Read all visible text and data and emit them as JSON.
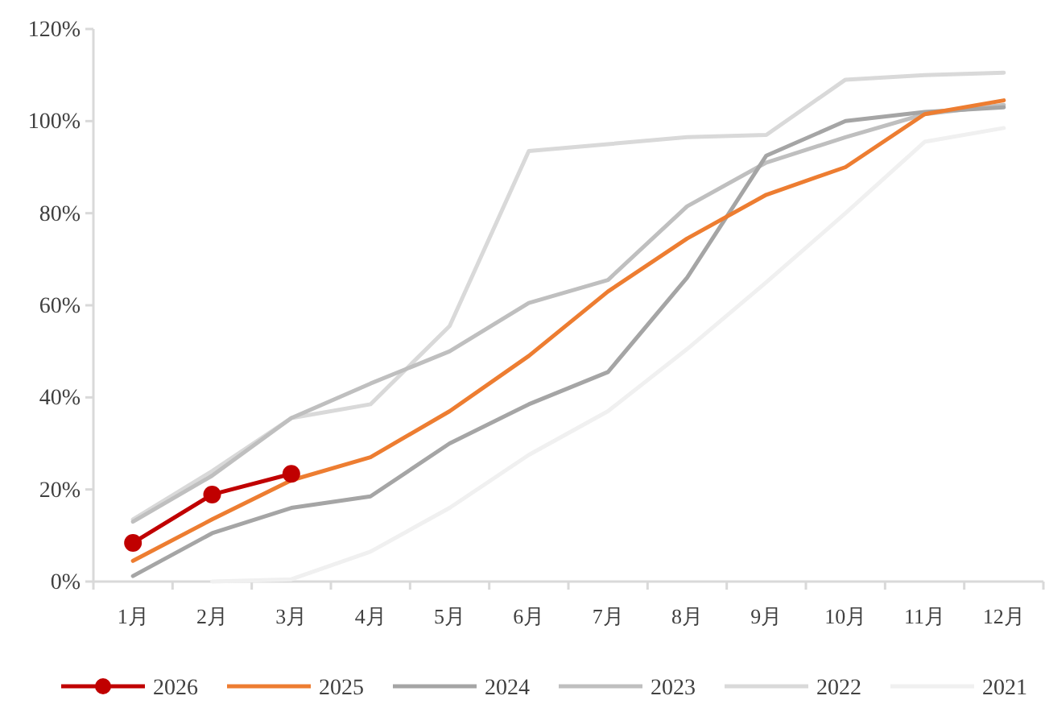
{
  "chart_data": {
    "type": "line",
    "categories": [
      "1月",
      "2月",
      "3月",
      "4月",
      "5月",
      "6月",
      "7月",
      "8月",
      "9月",
      "10月",
      "11月",
      "12月"
    ],
    "ylim": [
      0,
      120
    ],
    "yticks": [
      {
        "value": 0,
        "label": "0%"
      },
      {
        "value": 20,
        "label": "20%"
      },
      {
        "value": 40,
        "label": "40%"
      },
      {
        "value": 60,
        "label": "60%"
      },
      {
        "value": 80,
        "label": "80%"
      },
      {
        "value": 100,
        "label": "100%"
      },
      {
        "value": 120,
        "label": "120%"
      }
    ],
    "grid": false,
    "legend": "bottom",
    "series": [
      {
        "name": "2026",
        "color": "#c00000",
        "marker": "circle",
        "values": [
          8.4,
          18.9,
          23.4,
          null,
          null,
          null,
          null,
          null,
          null,
          null,
          null,
          null
        ]
      },
      {
        "name": "2025",
        "color": "#ed7d31",
        "values": [
          4.5,
          13.5,
          22,
          27,
          37,
          49,
          63,
          74.5,
          84,
          90,
          101.5,
          104.5
        ]
      },
      {
        "name": "2024",
        "color": "#a5a5a5",
        "values": [
          1.2,
          10.5,
          16,
          18.5,
          30,
          38.5,
          45.5,
          66,
          92.5,
          100,
          102,
          103
        ]
      },
      {
        "name": "2023",
        "color": "#bfbfbf",
        "values": [
          13,
          23,
          35.5,
          43,
          50,
          60.5,
          65.5,
          81.5,
          91,
          96.5,
          101.5,
          103.5
        ]
      },
      {
        "name": "2022",
        "color": "#d9d9d9",
        "values": [
          13.5,
          24,
          35.5,
          38.5,
          55.5,
          93.5,
          95,
          96.5,
          97,
          109,
          110,
          110.5
        ]
      },
      {
        "name": "2021",
        "color": "#f0f0f0",
        "values": [
          null,
          0,
          0.5,
          6.5,
          16,
          27.5,
          37,
          50.5,
          65,
          80,
          95.5,
          98.5
        ]
      }
    ]
  }
}
